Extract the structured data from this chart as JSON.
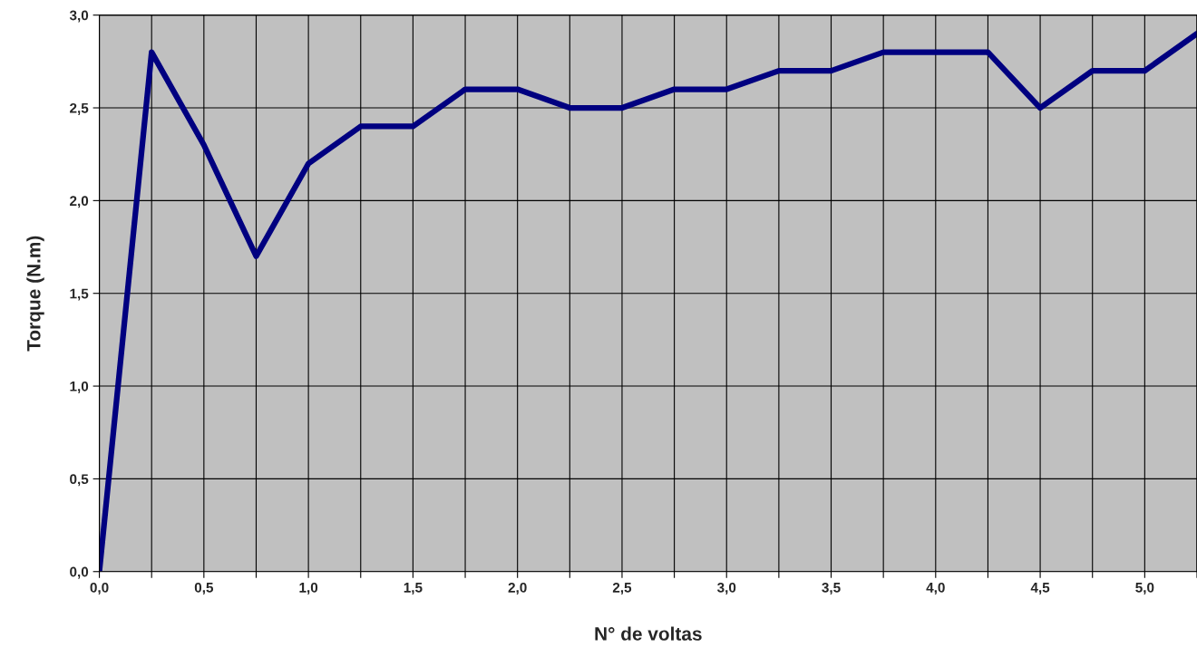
{
  "chart_data": {
    "type": "line",
    "xlabel": "N° de voltas",
    "ylabel": "Torque (N.m)",
    "x": [
      0,
      0.25,
      0.5,
      0.75,
      1.0,
      1.25,
      1.5,
      1.75,
      2.0,
      2.25,
      2.5,
      2.75,
      3.0,
      3.25,
      3.5,
      3.75,
      4.0,
      4.25,
      4.5,
      4.75,
      5.0,
      5.25
    ],
    "series": [
      {
        "color": "#000080",
        "values": [
          0,
          2.8,
          2.3,
          1.7,
          2.2,
          2.4,
          2.4,
          2.6,
          2.6,
          2.5,
          2.5,
          2.6,
          2.6,
          2.7,
          2.7,
          2.8,
          2.8,
          2.8,
          2.5,
          2.7,
          2.7,
          2.9
        ]
      }
    ],
    "xlim": [
      0,
      5.25
    ],
    "ylim": [
      0,
      3.0
    ],
    "xticks": [
      {
        "value": 0,
        "label": "0,0"
      },
      {
        "value": 0.25,
        "label": null
      },
      {
        "value": 0.5,
        "label": "0,5"
      },
      {
        "value": 0.75,
        "label": null
      },
      {
        "value": 1.0,
        "label": "1,0"
      },
      {
        "value": 1.25,
        "label": null
      },
      {
        "value": 1.5,
        "label": "1,5"
      },
      {
        "value": 1.75,
        "label": null
      },
      {
        "value": 2.0,
        "label": "2,0"
      },
      {
        "value": 2.25,
        "label": null
      },
      {
        "value": 2.5,
        "label": "2,5"
      },
      {
        "value": 2.75,
        "label": null
      },
      {
        "value": 3.0,
        "label": "3,0"
      },
      {
        "value": 3.25,
        "label": null
      },
      {
        "value": 3.5,
        "label": "3,5"
      },
      {
        "value": 3.75,
        "label": null
      },
      {
        "value": 4.0,
        "label": "4,0"
      },
      {
        "value": 4.25,
        "label": null
      },
      {
        "value": 4.5,
        "label": "4,5"
      },
      {
        "value": 4.75,
        "label": null
      },
      {
        "value": 5.0,
        "label": "5,0"
      },
      {
        "value": 5.25,
        "label": null
      }
    ],
    "yticks": [
      {
        "value": 0,
        "label": "0,0"
      },
      {
        "value": 0.5,
        "label": "0,5"
      },
      {
        "value": 1.0,
        "label": "1,0"
      },
      {
        "value": 1.5,
        "label": "1,5"
      },
      {
        "value": 2.0,
        "label": "2,0"
      },
      {
        "value": 2.5,
        "label": "2,5"
      },
      {
        "value": 3.0,
        "label": "3,0"
      }
    ],
    "grid": true,
    "marker": "none",
    "line_style": "solid",
    "legend": false
  }
}
